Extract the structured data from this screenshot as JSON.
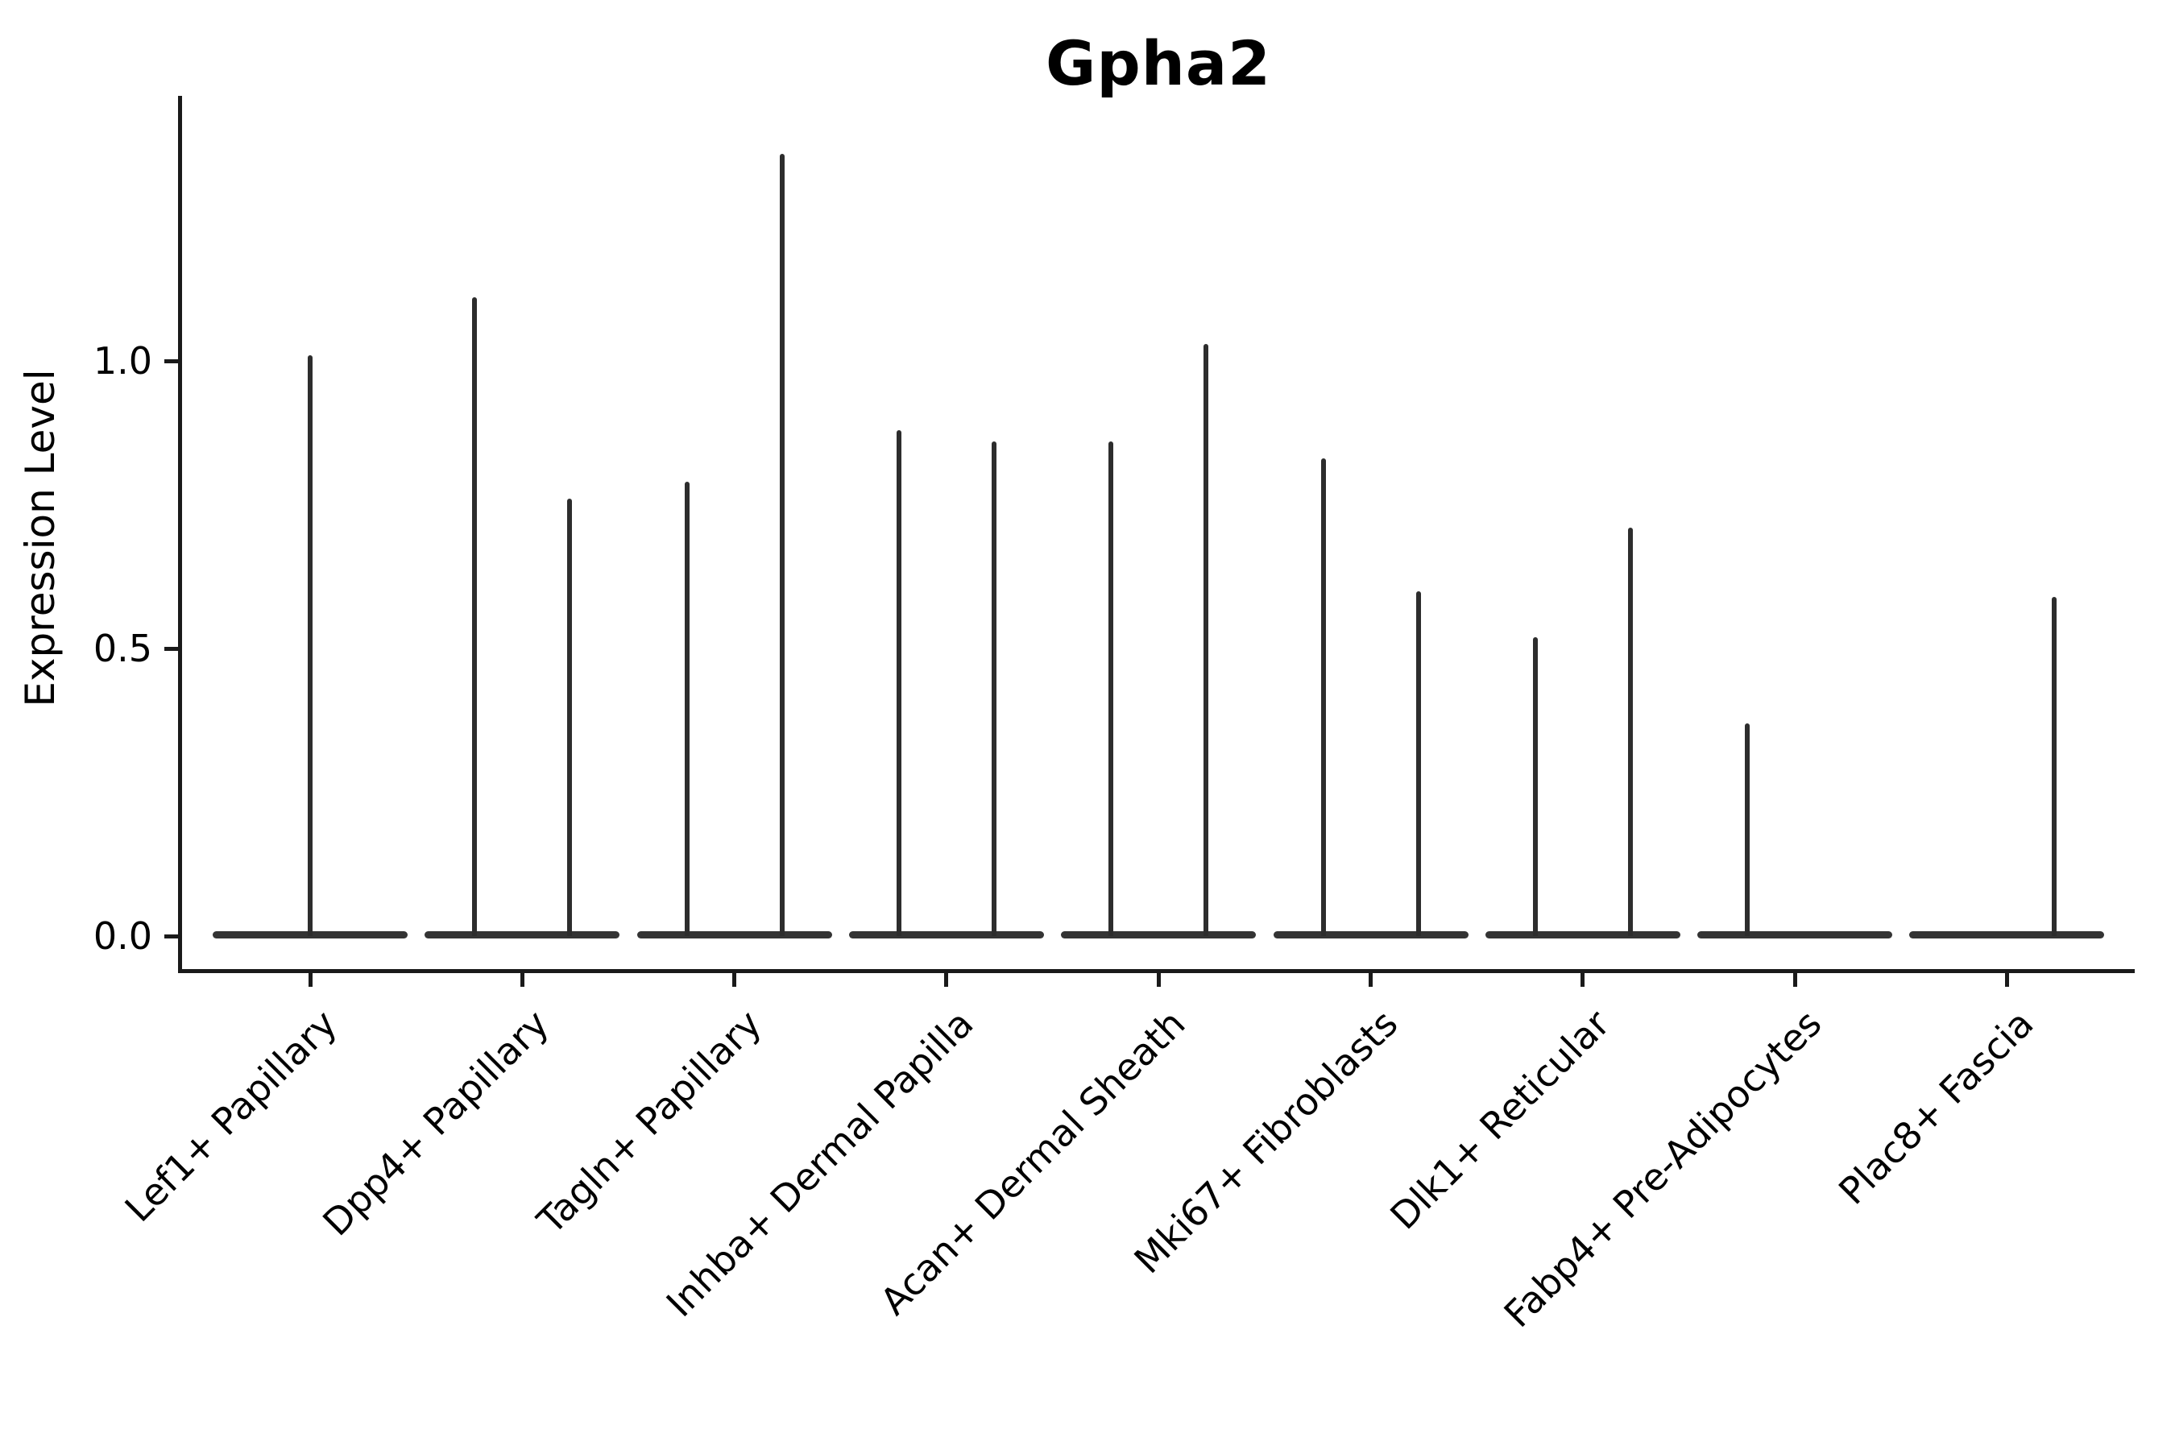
{
  "title": "Gpha2",
  "colors": {
    "ink": "#1a1a1a",
    "violin": "#2d2d2d",
    "background": "#ffffff"
  },
  "chart_data": {
    "type": "violin",
    "title": "Gpha2",
    "xlabel": "",
    "ylabel": "Expression Level",
    "ylim": [
      -0.065,
      1.46
    ],
    "yticks": [
      0.0,
      0.5,
      1.0
    ],
    "ytick_labels": [
      "0.0",
      "0.5",
      "1.0"
    ],
    "grid": false,
    "legend": "none",
    "note": "Each category shows flat violin bases at 0 with thin spikes reaching each group's maximum expression; spikes are dodged left/right within a category, centered when only one violin is present.",
    "categories": [
      {
        "label": "Lef1+ Papillary",
        "spikes": [
          {
            "side": "center",
            "max": 1.01
          }
        ]
      },
      {
        "label": "Dpp4+ Papillary",
        "spikes": [
          {
            "side": "left",
            "max": 1.11
          },
          {
            "side": "right",
            "max": 0.76
          }
        ]
      },
      {
        "label": "Tagln+ Papillary",
        "spikes": [
          {
            "side": "left",
            "max": 0.79
          },
          {
            "side": "right",
            "max": 1.36
          }
        ]
      },
      {
        "label": "Inhba+ Dermal Papilla",
        "spikes": [
          {
            "side": "left",
            "max": 0.88
          },
          {
            "side": "right",
            "max": 0.86
          }
        ]
      },
      {
        "label": "Acan+ Dermal Sheath",
        "spikes": [
          {
            "side": "left",
            "max": 0.86
          },
          {
            "side": "right",
            "max": 1.03
          }
        ]
      },
      {
        "label": "Mki67+ Fibroblasts",
        "spikes": [
          {
            "side": "left",
            "max": 0.83
          },
          {
            "side": "right",
            "max": 0.6
          }
        ]
      },
      {
        "label": "Dlk1+ Reticular",
        "spikes": [
          {
            "side": "left",
            "max": 0.52
          },
          {
            "side": "right",
            "max": 0.71
          }
        ]
      },
      {
        "label": "Fabp4+ Pre-Adipocytes",
        "spikes": [
          {
            "side": "left",
            "max": 0.37
          }
        ]
      },
      {
        "label": "Plac8+ Fascia",
        "spikes": [
          {
            "side": "right",
            "max": 0.59
          }
        ]
      }
    ]
  }
}
